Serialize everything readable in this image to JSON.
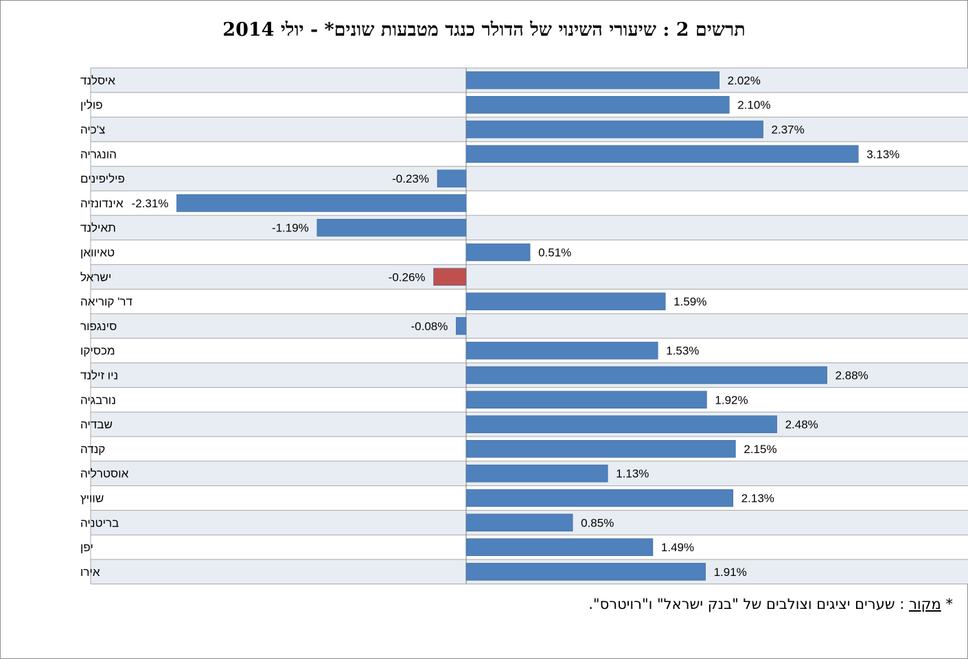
{
  "title": "תרשים 2 : שיעורי השינוי של הדולר כנגד מטבעות שונים* - יולי 2014",
  "source_note": {
    "star": "*",
    "label": "מקור",
    "text": ": שערים יציגים וצולבים של \"בנק ישראל\" ו\"רויטרס\"."
  },
  "colors": {
    "positive": "#4F81BD",
    "highlight": "#C0504D",
    "stripe": "#E8EDF3",
    "grid": "#A6A6A6"
  },
  "chart_data": {
    "type": "bar",
    "orientation": "horizontal",
    "title": "תרשים 2 : שיעורי השינוי של הדולר כנגד מטבעות שונים* - יולי 2014",
    "xlim": [
      -3.0,
      3.9
    ],
    "highlight": "ישראל",
    "categories": [
      "איסלנד",
      "פולין",
      "צ'כיה",
      "הונגריה",
      "פיליפינים",
      "אינדונזיה",
      "תאילנד",
      "טאיוואן",
      "ישראל",
      "דר' קוריאה",
      "סינגפור",
      "מכסיקו",
      "ניו זילנד",
      "נורבגיה",
      "שבדיה",
      "קנדה",
      "אוסטרליה",
      "שוויץ",
      "בריטניה",
      "יפן",
      "אירו"
    ],
    "values": [
      2.02,
      2.1,
      2.37,
      3.13,
      -0.23,
      -2.31,
      -1.19,
      0.51,
      -0.26,
      1.59,
      -0.08,
      1.53,
      2.88,
      1.92,
      2.48,
      2.15,
      1.13,
      2.13,
      0.85,
      1.49,
      1.91
    ],
    "value_labels": [
      "2.02%",
      "2.10%",
      "2.37%",
      "3.13%",
      "-0.23%",
      "-2.31%",
      "-1.19%",
      "0.51%",
      "-0.26%",
      "1.59%",
      "-0.08%",
      "1.53%",
      "2.88%",
      "1.92%",
      "2.48%",
      "2.15%",
      "1.13%",
      "2.13%",
      "0.85%",
      "1.49%",
      "1.91%"
    ]
  }
}
